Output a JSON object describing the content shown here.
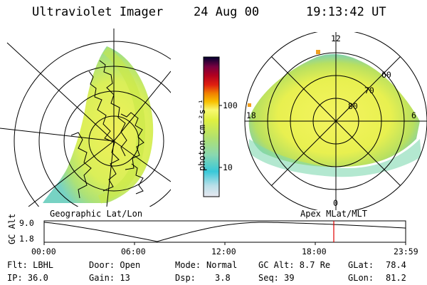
{
  "header": {
    "instrument": "Ultraviolet Imager",
    "date": "24 Aug 00",
    "time": "19:13:42 UT"
  },
  "colorbar": {
    "label": "photon cm⁻²s⁻¹",
    "ticks": [
      "100",
      "10"
    ],
    "scale": "log",
    "colors": [
      "#e8e8f0",
      "#b8dfe8",
      "#38c8d8",
      "#8ad8b0",
      "#b0e070",
      "#e0f040",
      "#f8f870",
      "#f8c000",
      "#f08000",
      "#e02010",
      "#b00020",
      "#780040",
      "#380040",
      "#000030"
    ]
  },
  "polar_plot": {
    "lat_labels": [
      "60",
      "70",
      "80"
    ],
    "mlt_labels": [
      "12",
      "18",
      "6",
      "0"
    ]
  },
  "geo_label": "Geographic Lat/Lon",
  "apex_label": "Apex MLat/MLT",
  "altitude_plot": {
    "axis_label": "GC Alt",
    "y_ticks": [
      "9.0",
      "1.8"
    ],
    "x_ticks": [
      "00:00",
      "06:00",
      "12:00",
      "18:00",
      "23:59"
    ],
    "current_time_marker_hours": 19.23
  },
  "status": {
    "flt": "Flt: LBHL",
    "ip": "IP: 36.0",
    "door": "Door: Open",
    "gain": "Gain: 13",
    "mode_label": "Mode:",
    "mode_value": "Normal",
    "dsp_label": "Dsp:",
    "dsp_value": "3.8",
    "gc_alt": "GC Alt: 8.7 Re",
    "seq": "Seq: 39",
    "glat_label": "GLat:",
    "glat_value": "78.4",
    "glon_label": "GLon:",
    "glon_value": "81.2"
  }
}
